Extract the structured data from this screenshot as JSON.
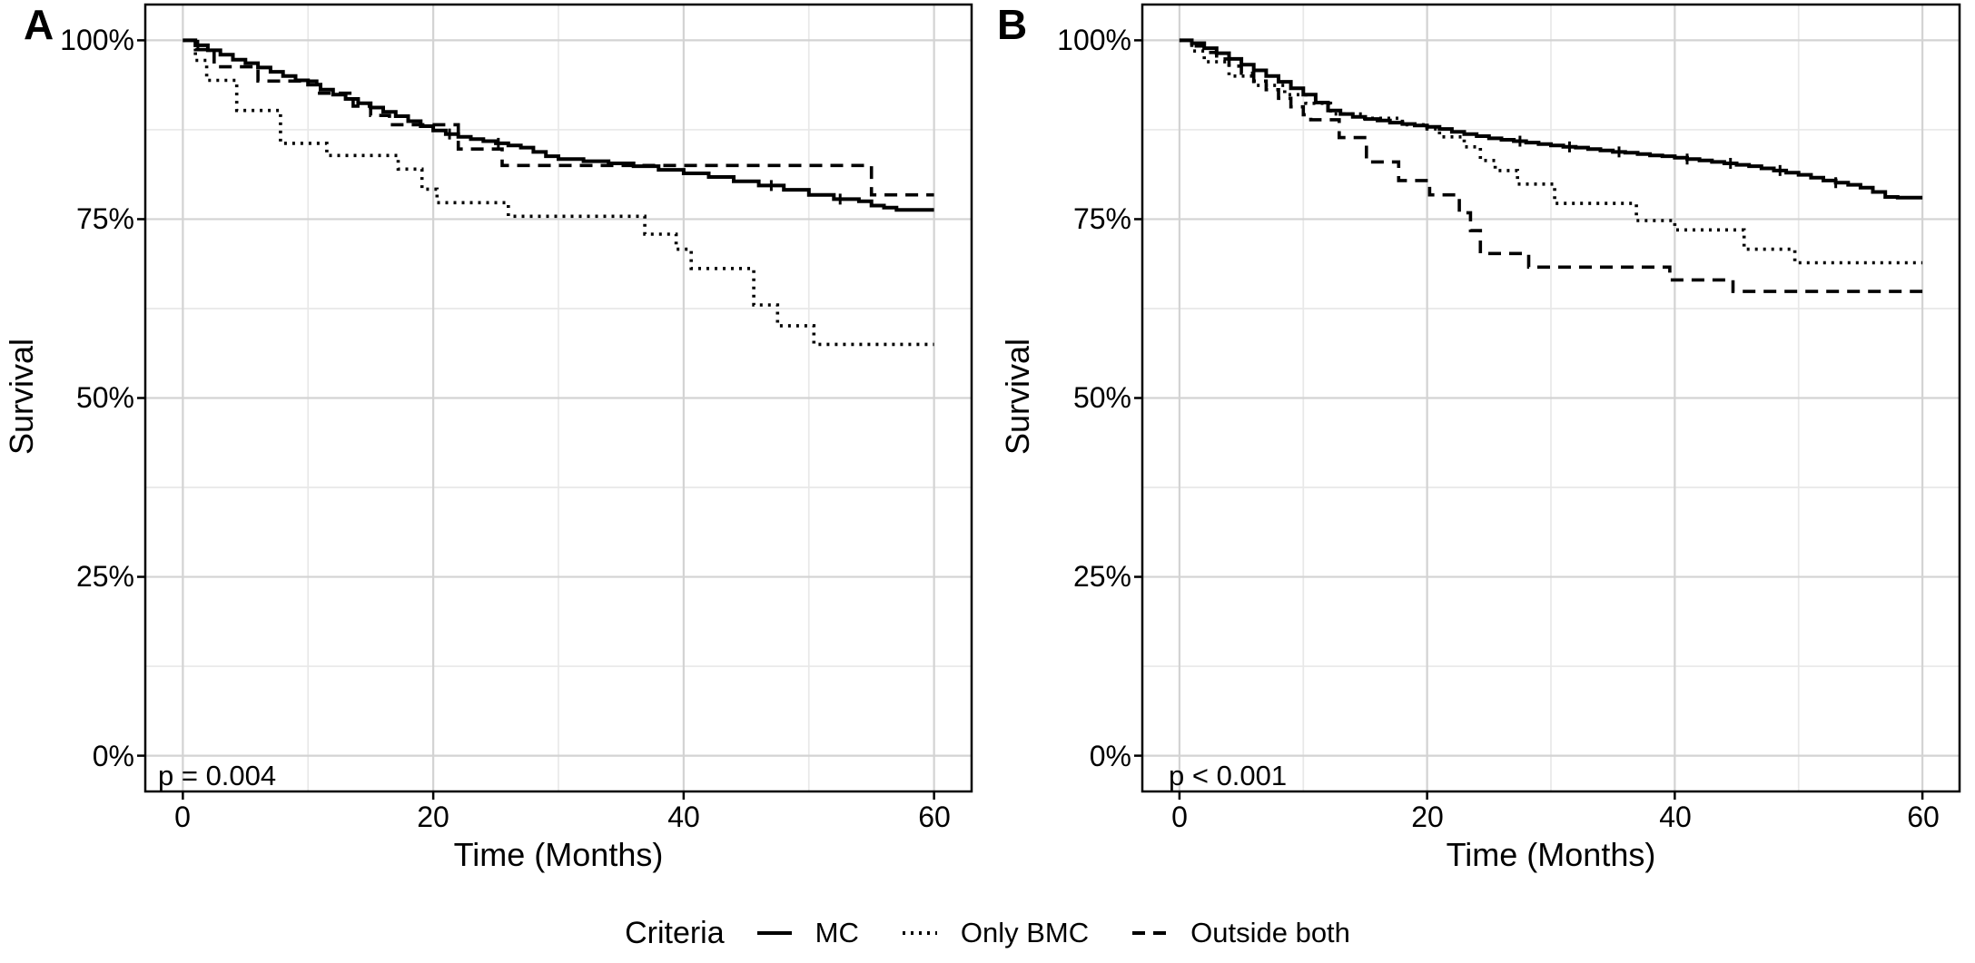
{
  "figure": {
    "background": "#ffffff",
    "line_color": "#000000",
    "grid_major_color": "#d3d3d3",
    "grid_minor_color": "#e8e8e8",
    "border_color": "#000000"
  },
  "legend": {
    "title": "Criteria",
    "items": [
      {
        "label": "MC",
        "linetype": "solid"
      },
      {
        "label": "Only BMC",
        "linetype": "dotted"
      },
      {
        "label": "Outside both",
        "linetype": "dashed"
      }
    ]
  },
  "chart_data": [
    {
      "type": "line",
      "subtype": "kaplan-meier-step",
      "panel_label": "A",
      "xlabel": "Time (Months)",
      "ylabel": "Survival",
      "annotation": "p = 0.004",
      "grid": true,
      "legend_position": "bottom",
      "xlim": [
        -3,
        63
      ],
      "ylim": [
        -5,
        105
      ],
      "x_ticks": [
        0,
        20,
        40,
        60
      ],
      "x_tick_labels": [
        "0",
        "20",
        "40",
        "60"
      ],
      "x_minor_ticks": [
        10,
        30,
        50
      ],
      "y_ticks": [
        100,
        75,
        50,
        25,
        0
      ],
      "y_tick_labels": [
        "100%",
        "75%",
        "50%",
        "25%",
        "0%"
      ],
      "y_minor_ticks": [
        12.5,
        37.5,
        62.5,
        87.5
      ],
      "series": [
        {
          "name": "MC",
          "linetype": "solid",
          "censor_times": [
            1.2,
            21.3,
            25.2,
            47,
            52.5
          ],
          "points": [
            [
              0,
              100
            ],
            [
              1,
              99.3
            ],
            [
              2,
              98.6
            ],
            [
              3,
              98
            ],
            [
              4,
              97.3
            ],
            [
              5,
              96.8
            ],
            [
              6,
              96.2
            ],
            [
              7,
              95.6
            ],
            [
              8,
              95
            ],
            [
              9,
              94.4
            ],
            [
              10,
              93.8
            ],
            [
              11,
              93.1
            ],
            [
              12,
              92.4
            ],
            [
              13,
              91.8
            ],
            [
              14,
              91.2
            ],
            [
              15,
              90.6
            ],
            [
              16,
              90
            ],
            [
              17,
              89.4
            ],
            [
              18,
              88.7
            ],
            [
              19,
              88
            ],
            [
              20,
              87.4
            ],
            [
              21,
              86.9
            ],
            [
              22,
              86.5
            ],
            [
              23,
              86.2
            ],
            [
              24,
              85.9
            ],
            [
              25,
              85.6
            ],
            [
              26,
              85.3
            ],
            [
              27,
              85
            ],
            [
              28,
              84.4
            ],
            [
              29,
              83.8
            ],
            [
              30,
              83.4
            ],
            [
              32,
              83.1
            ],
            [
              34,
              82.8
            ],
            [
              36,
              82.4
            ],
            [
              38,
              81.9
            ],
            [
              40,
              81.4
            ],
            [
              42,
              80.9
            ],
            [
              44,
              80.3
            ],
            [
              46,
              79.7
            ],
            [
              48,
              79.1
            ],
            [
              50,
              78.4
            ],
            [
              52,
              77.8
            ],
            [
              54,
              77.5
            ],
            [
              55,
              76.9
            ],
            [
              56,
              76.6
            ],
            [
              57,
              76.3
            ],
            [
              60,
              76.3
            ]
          ]
        },
        {
          "name": "Only BMC",
          "linetype": "dotted",
          "censor_times": [],
          "points": [
            [
              0,
              100
            ],
            [
              1,
              97.2
            ],
            [
              1.9,
              94.4
            ],
            [
              4.3,
              90.2
            ],
            [
              7.8,
              85.6
            ],
            [
              11.5,
              83.9
            ],
            [
              17.2,
              82
            ],
            [
              19.1,
              79.2
            ],
            [
              20.3,
              77.3
            ],
            [
              26,
              75.4
            ],
            [
              36.9,
              72.9
            ],
            [
              39.4,
              70.8
            ],
            [
              40.6,
              68.1
            ],
            [
              45.6,
              63
            ],
            [
              47.5,
              60.1
            ],
            [
              50.4,
              57.5
            ],
            [
              60,
              57.5
            ]
          ]
        },
        {
          "name": "Outside both",
          "linetype": "dashed",
          "censor_times": [],
          "points": [
            [
              0,
              100
            ],
            [
              1,
              98.7
            ],
            [
              2.5,
              96.3
            ],
            [
              6,
              94.3
            ],
            [
              10.7,
              92.6
            ],
            [
              13.6,
              90.8
            ],
            [
              15,
              89.5
            ],
            [
              16.5,
              88.2
            ],
            [
              22,
              84.8
            ],
            [
              25.5,
              82.5
            ],
            [
              55,
              78.4
            ],
            [
              60,
              78.4
            ]
          ]
        }
      ]
    },
    {
      "type": "line",
      "subtype": "kaplan-meier-step",
      "panel_label": "B",
      "xlabel": "Time (Months)",
      "ylabel": "Survival",
      "annotation": "p < 0.001",
      "grid": true,
      "legend_position": "bottom",
      "xlim": [
        -3,
        63
      ],
      "ylim": [
        -5,
        105
      ],
      "x_ticks": [
        0,
        20,
        40,
        60
      ],
      "x_tick_labels": [
        "0",
        "20",
        "40",
        "60"
      ],
      "x_minor_ticks": [
        10,
        30,
        50
      ],
      "y_ticks": [
        100,
        75,
        50,
        25,
        0
      ],
      "y_tick_labels": [
        "100%",
        "75%",
        "50%",
        "25%",
        "0%"
      ],
      "y_minor_ticks": [
        12.5,
        37.5,
        62.5,
        87.5
      ],
      "series": [
        {
          "name": "MC",
          "linetype": "solid",
          "censor_times": [
            27.5,
            31.5,
            35.5,
            41,
            44.5,
            48.5,
            53
          ],
          "points": [
            [
              0,
              100
            ],
            [
              1,
              99.6
            ],
            [
              2,
              98.9
            ],
            [
              3,
              98.2
            ],
            [
              4,
              97.4
            ],
            [
              5,
              96.6
            ],
            [
              6,
              95.8
            ],
            [
              7,
              95
            ],
            [
              8,
              94.2
            ],
            [
              9,
              93.3
            ],
            [
              10,
              92.4
            ],
            [
              11,
              91.3
            ],
            [
              12,
              90.2
            ],
            [
              13,
              89.7
            ],
            [
              14,
              89.3
            ],
            [
              15,
              89
            ],
            [
              16,
              88.8
            ],
            [
              17,
              88.5
            ],
            [
              18,
              88.3
            ],
            [
              19,
              88.1
            ],
            [
              20,
              87.9
            ],
            [
              21,
              87.6
            ],
            [
              22,
              87.2
            ],
            [
              23,
              86.9
            ],
            [
              24,
              86.6
            ],
            [
              25,
              86.3
            ],
            [
              26,
              86.1
            ],
            [
              27,
              85.9
            ],
            [
              28,
              85.7
            ],
            [
              29,
              85.5
            ],
            [
              30,
              85.3
            ],
            [
              31,
              85.1
            ],
            [
              32,
              85
            ],
            [
              33,
              84.8
            ],
            [
              34,
              84.6
            ],
            [
              35,
              84.4
            ],
            [
              36,
              84.3
            ],
            [
              37,
              84.1
            ],
            [
              38,
              83.9
            ],
            [
              39,
              83.8
            ],
            [
              40,
              83.6
            ],
            [
              41,
              83.4
            ],
            [
              42,
              83.2
            ],
            [
              43,
              83
            ],
            [
              44,
              82.8
            ],
            [
              45,
              82.6
            ],
            [
              46,
              82.4
            ],
            [
              47,
              82.1
            ],
            [
              48,
              81.8
            ],
            [
              49,
              81.5
            ],
            [
              50,
              81.2
            ],
            [
              51,
              80.8
            ],
            [
              52,
              80.4
            ],
            [
              53,
              80.1
            ],
            [
              54,
              79.8
            ],
            [
              55,
              79.4
            ],
            [
              56,
              78.8
            ],
            [
              57,
              78.1
            ],
            [
              58,
              78
            ],
            [
              60,
              78
            ]
          ]
        },
        {
          "name": "Only BMC",
          "linetype": "dotted",
          "censor_times": [],
          "points": [
            [
              0,
              100
            ],
            [
              1,
              98.5
            ],
            [
              2,
              97
            ],
            [
              4,
              95
            ],
            [
              6,
              93.7
            ],
            [
              8.5,
              92.4
            ],
            [
              10.2,
              91.2
            ],
            [
              12.2,
              89.7
            ],
            [
              14.8,
              89.1
            ],
            [
              18,
              88.2
            ],
            [
              20,
              87.6
            ],
            [
              21,
              86.5
            ],
            [
              23,
              85.1
            ],
            [
              24.3,
              83.2
            ],
            [
              25.5,
              81.8
            ],
            [
              27.3,
              79.9
            ],
            [
              30.3,
              77.2
            ],
            [
              36.9,
              74.8
            ],
            [
              40,
              73.5
            ],
            [
              45.6,
              70.8
            ],
            [
              49.7,
              68.9
            ],
            [
              60,
              68.9
            ]
          ]
        },
        {
          "name": "Outside both",
          "linetype": "dashed",
          "censor_times": [],
          "points": [
            [
              0,
              100
            ],
            [
              1,
              99.2
            ],
            [
              2,
              98.3
            ],
            [
              3,
              97.4
            ],
            [
              4,
              96.4
            ],
            [
              5,
              95.4
            ],
            [
              6,
              94.3
            ],
            [
              7,
              93.1
            ],
            [
              8,
              91.9
            ],
            [
              9,
              90.7
            ],
            [
              10,
              89.6
            ],
            [
              10.6,
              88.9
            ],
            [
              12.9,
              86.4
            ],
            [
              15.1,
              83
            ],
            [
              17.7,
              80.4
            ],
            [
              20.2,
              78.4
            ],
            [
              22.6,
              75.9
            ],
            [
              23.5,
              73.4
            ],
            [
              24.3,
              70.2
            ],
            [
              28.2,
              68.3
            ],
            [
              39.6,
              66.5
            ],
            [
              44.7,
              64.9
            ],
            [
              60,
              64.9
            ]
          ]
        }
      ]
    }
  ]
}
